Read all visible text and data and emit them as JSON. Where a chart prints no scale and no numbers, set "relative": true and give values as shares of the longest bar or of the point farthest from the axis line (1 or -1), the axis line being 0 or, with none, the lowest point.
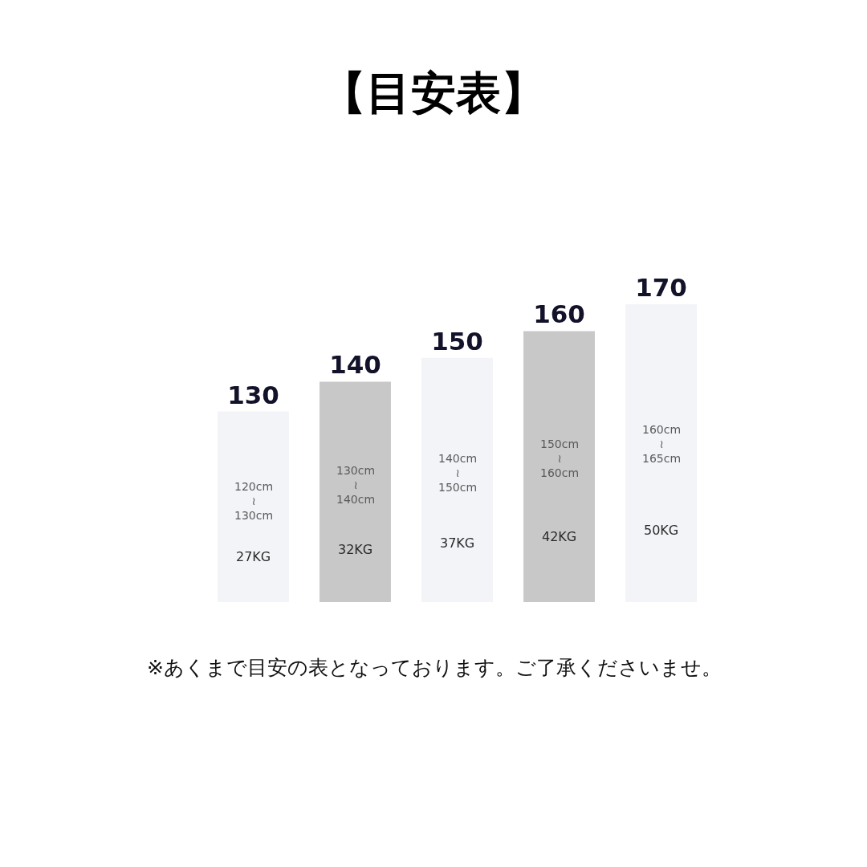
{
  "chart_data": {
    "type": "bar",
    "title": "【目安表】",
    "categories": [
      "130",
      "140",
      "150",
      "160",
      "170"
    ],
    "values": [
      0.64,
      0.74,
      0.82,
      0.91,
      1
    ],
    "colors": [
      "#f3f4f8",
      "#c8c8c8",
      "#f3f4f8",
      "#c8c8c8",
      "#f3f4f8"
    ],
    "relative": true,
    "annotations": [
      "120cm\n≀\n130cm",
      "27KG",
      "130cm\n≀\n140cm",
      "32KG",
      "140cm\n≀\n150cm",
      "37KG",
      "150cm\n≀\n160cm",
      "42KG",
      "160cm\n≀\n165cm",
      "50KG",
      "※あくまで目安の表となっております。ご了承くださいませ。"
    ]
  }
}
